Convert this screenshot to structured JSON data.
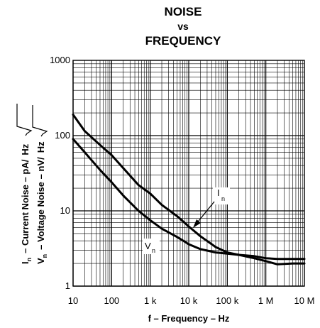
{
  "chart_data": {
    "type": "line",
    "title": [
      "NOISE",
      "vs",
      "FREQUENCY"
    ],
    "xlabel": "f – Frequency – Hz",
    "ylabel_current": {
      "symbol": "I",
      "sub": "n",
      "text": "– Current Noise – pA/",
      "unit": "Hz"
    },
    "ylabel_voltage": {
      "symbol": "V",
      "sub": "n",
      "text": "– Voltage Noise – nV/",
      "unit": "Hz"
    },
    "x_scale": "log",
    "y_scale": "log",
    "xlim": [
      10,
      10000000
    ],
    "ylim": [
      1,
      1000
    ],
    "x_ticks": [
      "10",
      "100",
      "1 k",
      "10 k",
      "100 k",
      "1 M",
      "10 M"
    ],
    "y_ticks": [
      "1",
      "10",
      "100",
      "1000"
    ],
    "grid": true,
    "series": [
      {
        "name": "I",
        "sub": "n",
        "x": [
          10,
          20,
          50,
          100,
          200,
          500,
          1000,
          2000,
          5000,
          10000,
          20000,
          50000,
          100000,
          200000,
          500000,
          1000000,
          2000000,
          5000000,
          10000000
        ],
        "y": [
          190,
          115,
          75,
          55,
          37,
          22,
          17,
          12,
          8.5,
          6.2,
          4.6,
          3.3,
          2.8,
          2.6,
          2.5,
          2.35,
          2.3,
          2.3,
          2.3
        ]
      },
      {
        "name": "V",
        "sub": "n",
        "x": [
          10,
          20,
          50,
          100,
          200,
          500,
          1000,
          2000,
          5000,
          10000,
          20000,
          50000,
          100000,
          200000,
          500000,
          1000000,
          2000000,
          5000000,
          10000000
        ],
        "y": [
          90,
          60,
          35,
          24,
          16,
          10,
          7.5,
          5.8,
          4.5,
          3.6,
          3.1,
          2.8,
          2.7,
          2.6,
          2.35,
          2.15,
          1.95,
          2.0,
          2.0
        ]
      }
    ]
  }
}
